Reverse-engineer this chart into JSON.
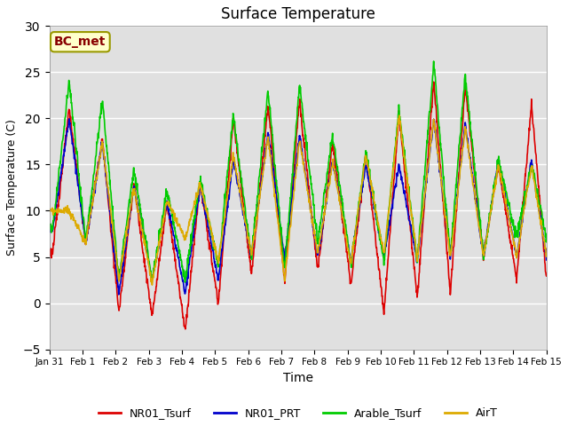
{
  "title": "Surface Temperature",
  "xlabel": "Time",
  "ylabel": "Surface Temperature (C)",
  "ylim": [
    -5,
    30
  ],
  "yticks": [
    -5,
    0,
    5,
    10,
    15,
    20,
    25,
    30
  ],
  "annotation": "BC_met",
  "legend_labels": [
    "NR01_Tsurf",
    "NR01_PRT",
    "Arable_Tsurf",
    "AirT"
  ],
  "colors": {
    "NR01_Tsurf": "#dd0000",
    "NR01_PRT": "#0000cc",
    "Arable_Tsurf": "#00cc00",
    "AirT": "#ddaa00"
  },
  "background_color": "#e0e0e0",
  "line_width": 1.2,
  "tick_labels": [
    "Jan 31",
    "Feb 1",
    "Feb 2",
    "Feb 3",
    "Feb 4",
    "Feb 5",
    "Feb 6",
    "Feb 7",
    "Feb 8",
    "Feb 9",
    "Feb 10",
    "Feb 11",
    "Feb 12",
    "Feb 13",
    "Feb 14",
    "Feb 15"
  ],
  "tick_positions": [
    0,
    1,
    2,
    3,
    4,
    5,
    6,
    7,
    8,
    9,
    10,
    11,
    12,
    13,
    14,
    15
  ],
  "peak_times": [
    0.6,
    1.6,
    2.55,
    3.55,
    4.55,
    5.55,
    6.6,
    7.55,
    8.55,
    9.55,
    10.55,
    11.6,
    12.55,
    13.55,
    14.55
  ],
  "trough_times": [
    0.1,
    1.1,
    2.1,
    3.1,
    4.1,
    5.1,
    6.1,
    7.1,
    8.1,
    9.1,
    10.1,
    11.1,
    12.1,
    13.1,
    14.1
  ],
  "peak_greens": [
    24,
    22,
    14.5,
    12.2,
    13.5,
    20.3,
    23,
    23.8,
    18.2,
    16.3,
    21,
    26,
    24.8,
    15.5,
    15
  ],
  "peak_reds": [
    21,
    17.8,
    13,
    11,
    13,
    20,
    21.5,
    22,
    17.5,
    16.2,
    20.5,
    24,
    23.5,
    15,
    21.5
  ],
  "peak_blues": [
    20,
    17.5,
    12.8,
    11,
    12.8,
    15.5,
    18.5,
    18.2,
    15.5,
    15,
    15,
    20,
    19.5,
    15.5,
    15.5
  ],
  "peak_oranges": [
    10,
    17.5,
    12.5,
    11,
    13,
    16,
    18,
    17.8,
    15.3,
    16,
    20.3,
    20,
    19,
    15,
    15
  ],
  "trough_reds": [
    5.5,
    6.5,
    -1.0,
    -1.5,
    -3.0,
    -0.1,
    3.0,
    2.2,
    3.5,
    2.0,
    -1.0,
    0.5,
    1.0,
    5.0,
    2.5
  ],
  "trough_blues": [
    8.0,
    6.5,
    1.0,
    2.5,
    1.0,
    2.5,
    5.0,
    4.8,
    5.0,
    4.5,
    5.0,
    4.5,
    5.0,
    5.0,
    5.0
  ],
  "trough_greens": [
    8.0,
    6.5,
    2.5,
    2.5,
    2.5,
    4.0,
    5.0,
    3.5,
    6.5,
    4.0,
    4.5,
    4.5,
    5.0,
    5.0,
    7.0
  ],
  "trough_oranges": [
    10,
    6.5,
    2.5,
    2.2,
    7.0,
    4.5,
    5.2,
    2.5,
    5.3,
    4.2,
    5.2,
    4.8,
    5.0,
    5.0,
    5.0
  ]
}
